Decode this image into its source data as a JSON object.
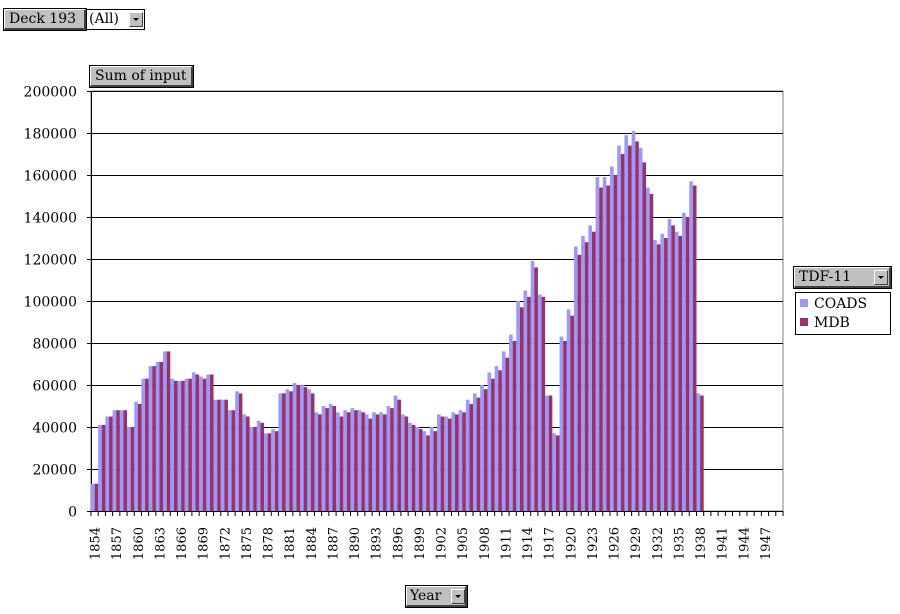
{
  "page_filter": {
    "field": "Deck 193",
    "value": "(All)"
  },
  "data_field": "Sum of input",
  "series_field": "TDF-11",
  "category_field": "Year",
  "colors": {
    "COADS": "#9999ff",
    "MDB": "#993366",
    "gridline": "#000000",
    "field_button": "#c0c0c0"
  },
  "icons": [
    "chevron-down-icon"
  ],
  "chart_data": {
    "type": "bar",
    "title": "",
    "xlabel": "Year",
    "ylabel": "",
    "ylim": [
      0,
      200000
    ],
    "yticks": [
      0,
      20000,
      40000,
      60000,
      80000,
      100000,
      120000,
      140000,
      160000,
      180000,
      200000
    ],
    "grid": true,
    "legend": "right",
    "categories": [
      "1854",
      "1855",
      "1856",
      "1857",
      "1858",
      "1859",
      "1860",
      "1861",
      "1862",
      "1863",
      "1864",
      "1865",
      "1866",
      "1867",
      "1868",
      "1869",
      "1870",
      "1871",
      "1872",
      "1873",
      "1874",
      "1875",
      "1876",
      "1877",
      "1878",
      "1879",
      "1880",
      "1881",
      "1882",
      "1883",
      "1884",
      "1885",
      "1886",
      "1887",
      "1888",
      "1889",
      "1890",
      "1891",
      "1892",
      "1893",
      "1894",
      "1895",
      "1896",
      "1897",
      "1898",
      "1899",
      "1900",
      "1901",
      "1902",
      "1903",
      "1904",
      "1905",
      "1906",
      "1907",
      "1908",
      "1909",
      "1910",
      "1911",
      "1912",
      "1913",
      "1914",
      "1915",
      "1916",
      "1917",
      "1918",
      "1919",
      "1920",
      "1921",
      "1922",
      "1923",
      "1924",
      "1925",
      "1926",
      "1927",
      "1928",
      "1929",
      "1930",
      "1931",
      "1932",
      "1933",
      "1934",
      "1935",
      "1936",
      "1937",
      "1938",
      "1939",
      "1940",
      "1941",
      "1942",
      "1943",
      "1944",
      "1945",
      "1946",
      "1947",
      "1948",
      "1949"
    ],
    "tick_labels_shown": [
      "1854",
      "1857",
      "1860",
      "1863",
      "1866",
      "1869",
      "1872",
      "1875",
      "1878",
      "1881",
      "1884",
      "1887",
      "1890",
      "1893",
      "1896",
      "1899",
      "1902",
      "1905",
      "1908",
      "1911",
      "1914",
      "1917",
      "1920",
      "1923",
      "1926",
      "1929",
      "1932",
      "1935",
      "1938",
      "1941",
      "1944",
      "1947"
    ],
    "series": [
      {
        "name": "COADS",
        "values": [
          13000,
          41000,
          45000,
          48000,
          48000,
          40000,
          52000,
          63000,
          69000,
          71000,
          76000,
          63000,
          62000,
          63000,
          66000,
          64000,
          65000,
          53000,
          53000,
          48000,
          57000,
          46000,
          40000,
          43000,
          37000,
          39000,
          56000,
          58000,
          61000,
          60000,
          58000,
          47000,
          50000,
          51000,
          47000,
          48000,
          49000,
          48000,
          46000,
          47000,
          47000,
          50000,
          55000,
          46000,
          42000,
          40000,
          38000,
          40000,
          46000,
          45000,
          47000,
          48000,
          53000,
          56000,
          60000,
          66000,
          69000,
          76000,
          84000,
          100000,
          105000,
          119000,
          103000,
          55000,
          37000,
          83000,
          96000,
          126000,
          131000,
          136000,
          159000,
          159000,
          164000,
          174000,
          179000,
          181000,
          173000,
          154000,
          129000,
          132000,
          139000,
          133000,
          142000,
          157000,
          56000,
          0,
          0,
          0,
          0,
          0,
          0,
          0,
          0,
          0,
          0,
          0
        ]
      },
      {
        "name": "MDB",
        "values": [
          13000,
          41000,
          45000,
          48000,
          48000,
          40000,
          51000,
          63000,
          69000,
          71000,
          76000,
          62000,
          62000,
          63000,
          65000,
          63000,
          65000,
          53000,
          53000,
          48000,
          56000,
          45000,
          40000,
          42000,
          37000,
          38000,
          56000,
          57000,
          60000,
          59000,
          56000,
          46000,
          49000,
          50000,
          45000,
          47000,
          48000,
          47000,
          44000,
          46000,
          46000,
          49000,
          53000,
          45000,
          41000,
          39000,
          36000,
          38000,
          45000,
          44000,
          46000,
          47000,
          51000,
          54000,
          58000,
          63000,
          67000,
          73000,
          81000,
          97000,
          102000,
          116000,
          102000,
          55000,
          36000,
          81000,
          93000,
          122000,
          128000,
          133000,
          154000,
          155000,
          160000,
          170000,
          174000,
          176000,
          166000,
          151000,
          127000,
          130000,
          136000,
          131000,
          140000,
          155000,
          55000,
          0,
          0,
          0,
          0,
          0,
          0,
          0,
          0,
          0,
          0,
          0
        ]
      }
    ]
  }
}
